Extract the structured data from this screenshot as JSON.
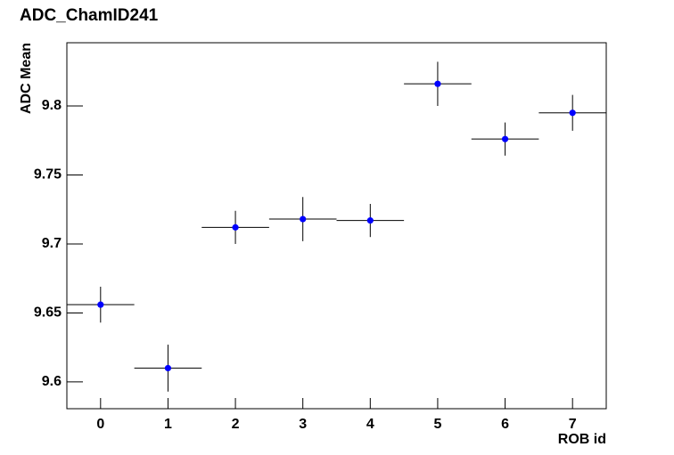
{
  "chart_data": {
    "type": "scatter",
    "title": "ADC_ChamID241",
    "x_label": "ROB id",
    "y_label": "ADC Mean",
    "x": [
      0,
      1,
      2,
      3,
      4,
      5,
      6,
      7
    ],
    "xerr": [
      0.5,
      0.5,
      0.5,
      0.5,
      0.5,
      0.5,
      0.5,
      0.5
    ],
    "values": [
      9.656,
      9.61,
      9.712,
      9.718,
      9.717,
      9.816,
      9.776,
      9.795
    ],
    "yerr": [
      0.013,
      0.017,
      0.012,
      0.016,
      0.012,
      0.016,
      0.012,
      0.013
    ],
    "color": "#0000ff",
    "xlim": [
      -0.5,
      7.5
    ],
    "xticks": [
      0,
      1,
      2,
      3,
      4,
      5,
      6,
      7
    ],
    "ylim": [
      9.5806,
      9.8458
    ],
    "yticks": [
      9.6,
      9.65,
      9.7,
      9.75,
      9.8
    ],
    "grid": false
  }
}
